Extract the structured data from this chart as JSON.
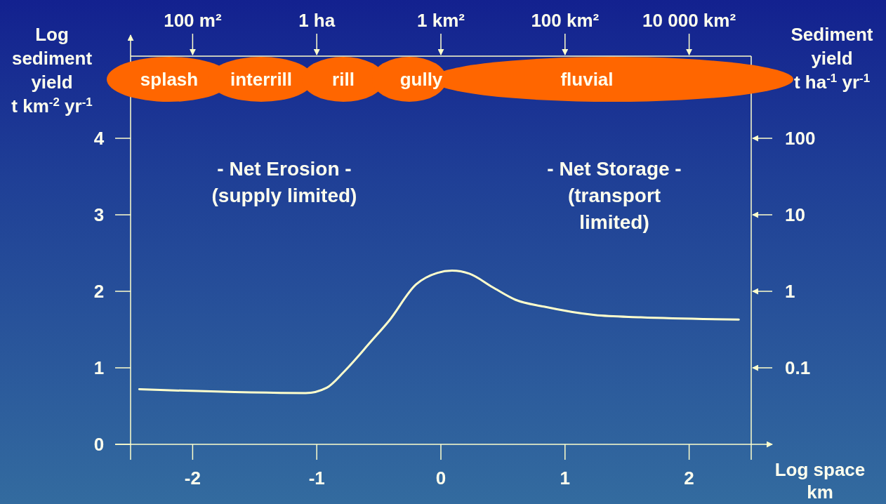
{
  "chart_data": {
    "type": "line",
    "xlabel": "Log space\nkm",
    "ylabel": "Log\nsediment\nyield\nt km$^{-2}$ yr$^{-1}$",
    "y2label": "Sediment\nyield\nt ha$^{-1}$ yr$^{-1}$",
    "x": [
      -2.43,
      -1.09,
      -0.92,
      -0.78,
      -0.56,
      -0.42,
      -0.2,
      -0.03,
      0.09,
      0.23,
      0.42,
      0.6,
      0.83,
      1.24,
      1.61,
      2.4
    ],
    "series": [
      {
        "color": "#ffffcc",
        "values": [
          0.72,
          0.67,
          0.74,
          0.95,
          1.35,
          1.61,
          2.09,
          2.24,
          2.27,
          2.23,
          2.05,
          1.89,
          1.8,
          1.69,
          1.66,
          1.63
        ]
      }
    ],
    "xlim": [
      -2.5,
      2.5
    ],
    "xticks": [
      -2,
      -1,
      0,
      1,
      2
    ],
    "ylim": [
      0,
      5
    ],
    "yticks": [
      0,
      1,
      2,
      3,
      4
    ],
    "y2lim": [
      0.01,
      1000
    ],
    "y2ticks": [
      0.1,
      1,
      10,
      100
    ],
    "log": "y2",
    "annotations": [
      "- Net Erosion -\n(supply limited)",
      "- Net Storage -\n(transport\nlimited)",
      "100 m²",
      "1 ha",
      "1 km²",
      "100 km²",
      "10 000 km²",
      "splash",
      "interrill",
      "rill",
      "gully",
      "fluvial"
    ],
    "grid": false,
    "marker": "none",
    "line_style": "solid"
  }
}
